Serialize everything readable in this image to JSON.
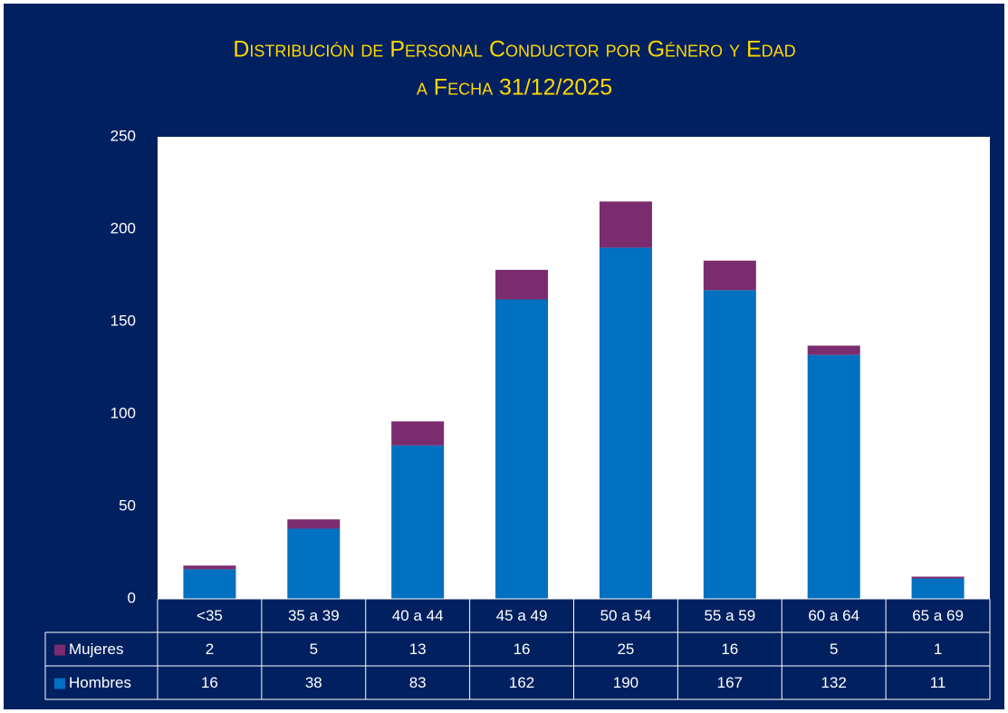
{
  "chart_data": {
    "type": "stacked_bar",
    "title": "Distribución de Personal Conductor por Género y Edad",
    "subtitle": "a Fecha 31/12/2025",
    "categories": [
      "<35",
      "35 a 39",
      "40 a 44",
      "45 a 49",
      "50 a 54",
      "55 a 59",
      "60 a 64",
      "65 a 69"
    ],
    "series": [
      {
        "name": "Mujeres",
        "color": "#7b2c6e",
        "values": [
          2,
          5,
          13,
          16,
          25,
          16,
          5,
          1
        ]
      },
      {
        "name": "Hombres",
        "color": "#0070c0",
        "values": [
          16,
          38,
          83,
          162,
          190,
          167,
          132,
          11
        ]
      }
    ],
    "ylim": [
      0,
      250
    ],
    "yticks": [
      0,
      50,
      100,
      150,
      200,
      250
    ],
    "grid": false
  }
}
